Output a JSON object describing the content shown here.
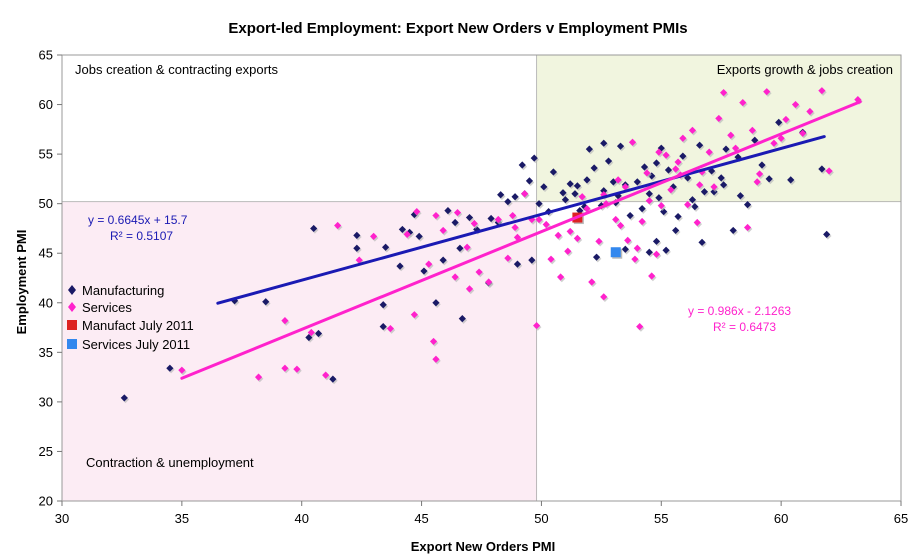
{
  "chart_data": {
    "type": "scatter",
    "title": "Export-led Employment: Export New Orders v Employment PMIs",
    "xlabel": "Export New Orders PMI",
    "ylabel": "Employment PMI",
    "xlim": [
      30,
      65
    ],
    "ylim": [
      20,
      65
    ],
    "x_ticks": [
      "30",
      "35",
      "40",
      "45",
      "50",
      "55",
      "60",
      "65"
    ],
    "y_ticks": [
      "20",
      "25",
      "30",
      "35",
      "40",
      "45",
      "50",
      "55",
      "60",
      "65"
    ],
    "quadrants": {
      "top_left": "Jobs creation & contracting exports",
      "top_right": "Exports growth & jobs creation",
      "bottom_left": "Contraction & unemployment",
      "top_right_fill": "#f1f5df",
      "bottom_left_fill": "#fcecf4"
    },
    "legend": {
      "position": "left",
      "items": [
        "Manufacturing",
        "Services",
        "Manufact July 2011",
        "Services July 2011"
      ]
    },
    "series": [
      {
        "name": "Manufacturing",
        "color": "#1a1a66",
        "marker": "diamond",
        "points": [
          [
            32.6,
            30.4
          ],
          [
            34.5,
            33.4
          ],
          [
            37.2,
            40.2
          ],
          [
            38.5,
            40.1
          ],
          [
            40.3,
            36.5
          ],
          [
            40.7,
            36.9
          ],
          [
            41.3,
            32.3
          ],
          [
            40.5,
            47.5
          ],
          [
            42.3,
            46.8
          ],
          [
            42.3,
            45.5
          ],
          [
            43.4,
            37.6
          ],
          [
            43.4,
            39.8
          ],
          [
            43.5,
            45.6
          ],
          [
            44.1,
            43.7
          ],
          [
            44.2,
            47.4
          ],
          [
            44.5,
            47.1
          ],
          [
            44.7,
            48.9
          ],
          [
            44.9,
            46.7
          ],
          [
            45.1,
            43.2
          ],
          [
            45.6,
            40.0
          ],
          [
            45.9,
            44.3
          ],
          [
            46.1,
            49.3
          ],
          [
            46.4,
            48.1
          ],
          [
            46.6,
            45.5
          ],
          [
            46.7,
            38.4
          ],
          [
            47.0,
            48.6
          ],
          [
            47.3,
            47.4
          ],
          [
            47.8,
            42.0
          ],
          [
            47.9,
            48.5
          ],
          [
            48.3,
            50.9
          ],
          [
            48.6,
            50.2
          ],
          [
            48.9,
            50.7
          ],
          [
            49.2,
            53.9
          ],
          [
            49.3,
            51.0
          ],
          [
            49.5,
            52.3
          ],
          [
            49.7,
            54.6
          ],
          [
            49.9,
            50.0
          ],
          [
            50.3,
            49.2
          ],
          [
            50.5,
            53.2
          ],
          [
            50.9,
            51.1
          ],
          [
            51.0,
            50.4
          ],
          [
            51.2,
            52.0
          ],
          [
            51.5,
            51.8
          ],
          [
            51.6,
            49.3
          ],
          [
            51.9,
            52.4
          ],
          [
            52.2,
            53.6
          ],
          [
            52.5,
            49.8
          ],
          [
            52.6,
            51.3
          ],
          [
            52.8,
            54.3
          ],
          [
            53.0,
            52.2
          ],
          [
            53.1,
            50.1
          ],
          [
            53.3,
            55.8
          ],
          [
            53.5,
            51.9
          ],
          [
            53.7,
            48.8
          ],
          [
            54.0,
            52.2
          ],
          [
            54.2,
            49.5
          ],
          [
            54.5,
            51.0
          ],
          [
            54.6,
            52.8
          ],
          [
            54.8,
            54.1
          ],
          [
            54.9,
            50.6
          ],
          [
            55.1,
            49.2
          ],
          [
            55.3,
            53.4
          ],
          [
            55.5,
            51.7
          ],
          [
            55.7,
            48.7
          ],
          [
            55.9,
            54.8
          ],
          [
            56.1,
            52.6
          ],
          [
            56.3,
            50.4
          ],
          [
            56.6,
            55.9
          ],
          [
            56.8,
            51.2
          ],
          [
            57.1,
            53.3
          ],
          [
            57.5,
            52.6
          ],
          [
            57.7,
            55.5
          ],
          [
            58.0,
            47.3
          ],
          [
            58.2,
            54.7
          ],
          [
            58.6,
            49.9
          ],
          [
            58.9,
            56.4
          ],
          [
            59.2,
            53.9
          ],
          [
            59.5,
            52.5
          ],
          [
            59.9,
            58.2
          ],
          [
            60.4,
            52.4
          ],
          [
            60.9,
            57.2
          ],
          [
            61.7,
            53.5
          ],
          [
            61.9,
            46.9
          ],
          [
            49.6,
            44.3
          ],
          [
            49.0,
            43.9
          ],
          [
            52.3,
            44.6
          ],
          [
            53.5,
            45.4
          ],
          [
            54.8,
            46.2
          ],
          [
            55.6,
            47.3
          ],
          [
            56.7,
            46.1
          ],
          [
            55.2,
            45.3
          ],
          [
            57.2,
            51.2
          ],
          [
            52.6,
            56.1
          ],
          [
            52.0,
            55.5
          ],
          [
            54.5,
            45.1
          ],
          [
            48.2,
            48.1
          ],
          [
            50.1,
            51.7
          ],
          [
            51.8,
            49.7
          ],
          [
            53.2,
            50.8
          ],
          [
            55.0,
            55.6
          ],
          [
            56.4,
            49.7
          ],
          [
            57.6,
            51.9
          ],
          [
            58.3,
            50.8
          ],
          [
            54.3,
            53.7
          ],
          [
            51.4,
            51.0
          ]
        ]
      },
      {
        "name": "Services",
        "color": "#ff22cc",
        "marker": "diamond",
        "points": [
          [
            35.0,
            33.2
          ],
          [
            38.2,
            32.5
          ],
          [
            39.3,
            38.2
          ],
          [
            39.3,
            33.4
          ],
          [
            39.8,
            33.3
          ],
          [
            40.4,
            37.0
          ],
          [
            41.0,
            32.7
          ],
          [
            41.5,
            47.8
          ],
          [
            42.4,
            44.3
          ],
          [
            43.0,
            46.7
          ],
          [
            43.7,
            37.4
          ],
          [
            44.4,
            46.9
          ],
          [
            44.8,
            49.2
          ],
          [
            45.3,
            43.9
          ],
          [
            45.5,
            36.1
          ],
          [
            45.6,
            34.3
          ],
          [
            45.6,
            48.8
          ],
          [
            45.9,
            47.3
          ],
          [
            46.5,
            49.1
          ],
          [
            46.9,
            45.6
          ],
          [
            47.0,
            41.4
          ],
          [
            47.2,
            48.0
          ],
          [
            47.8,
            42.1
          ],
          [
            48.2,
            48.4
          ],
          [
            48.6,
            44.5
          ],
          [
            48.8,
            48.8
          ],
          [
            49.0,
            46.6
          ],
          [
            49.3,
            51.0
          ],
          [
            49.8,
            37.7
          ],
          [
            49.9,
            48.4
          ],
          [
            50.4,
            44.4
          ],
          [
            50.8,
            42.6
          ],
          [
            51.2,
            47.2
          ],
          [
            51.5,
            46.5
          ],
          [
            51.7,
            50.7
          ],
          [
            52.1,
            42.1
          ],
          [
            52.6,
            40.6
          ],
          [
            52.6,
            50.9
          ],
          [
            53.1,
            48.4
          ],
          [
            53.3,
            47.8
          ],
          [
            53.6,
            46.3
          ],
          [
            53.9,
            44.4
          ],
          [
            54.1,
            37.6
          ],
          [
            54.4,
            53.1
          ],
          [
            54.5,
            50.3
          ],
          [
            54.6,
            42.7
          ],
          [
            54.8,
            44.9
          ],
          [
            55.2,
            54.9
          ],
          [
            55.4,
            51.4
          ],
          [
            55.6,
            53.5
          ],
          [
            55.9,
            56.6
          ],
          [
            56.1,
            49.9
          ],
          [
            56.5,
            48.1
          ],
          [
            56.7,
            53.2
          ],
          [
            57.0,
            55.2
          ],
          [
            57.2,
            51.7
          ],
          [
            57.6,
            61.2
          ],
          [
            57.9,
            56.9
          ],
          [
            58.4,
            60.2
          ],
          [
            58.6,
            47.6
          ],
          [
            58.8,
            57.4
          ],
          [
            59.1,
            53.0
          ],
          [
            59.4,
            61.3
          ],
          [
            59.7,
            56.1
          ],
          [
            60.2,
            58.5
          ],
          [
            60.6,
            60.0
          ],
          [
            60.9,
            57.1
          ],
          [
            61.2,
            59.3
          ],
          [
            61.7,
            61.4
          ],
          [
            62.0,
            53.3
          ],
          [
            63.2,
            60.5
          ],
          [
            49.6,
            48.4
          ],
          [
            50.7,
            46.8
          ],
          [
            51.9,
            49.5
          ],
          [
            52.7,
            50.0
          ],
          [
            53.5,
            51.7
          ],
          [
            54.0,
            45.5
          ],
          [
            55.0,
            49.8
          ],
          [
            55.8,
            52.9
          ],
          [
            56.3,
            57.4
          ],
          [
            57.4,
            58.6
          ],
          [
            58.1,
            55.6
          ],
          [
            59.0,
            52.2
          ],
          [
            60.0,
            56.6
          ],
          [
            55.7,
            54.2
          ],
          [
            54.9,
            55.2
          ],
          [
            53.2,
            52.4
          ],
          [
            52.4,
            46.2
          ],
          [
            50.2,
            47.9
          ],
          [
            48.9,
            47.6
          ],
          [
            46.4,
            42.6
          ],
          [
            47.4,
            43.1
          ],
          [
            44.7,
            38.8
          ],
          [
            56.6,
            51.9
          ],
          [
            54.2,
            48.2
          ],
          [
            53.8,
            56.2
          ],
          [
            51.1,
            45.2
          ]
        ]
      },
      {
        "name": "Manufact July 2011",
        "color": "#dd2222",
        "marker": "square",
        "points": [
          [
            51.5,
            48.6
          ]
        ]
      },
      {
        "name": "Services July 2011",
        "color": "#3388ee",
        "marker": "square",
        "points": [
          [
            53.1,
            45.1
          ]
        ]
      }
    ],
    "trendlines": [
      {
        "name": "Manufacturing trend",
        "color": "#1a1ab3",
        "equation": "y = 0.6645x + 15.7",
        "r2": "R² = 0.5107",
        "slope": 0.6645,
        "intercept": 15.7,
        "x_range": [
          36.5,
          61.8
        ]
      },
      {
        "name": "Services trend",
        "color": "#ff22cc",
        "equation": "y = 0.986x - 2.1263",
        "r2": "R² = 0.6473",
        "slope": 0.986,
        "intercept": -2.1263,
        "x_range": [
          35.0,
          63.3
        ]
      }
    ]
  }
}
